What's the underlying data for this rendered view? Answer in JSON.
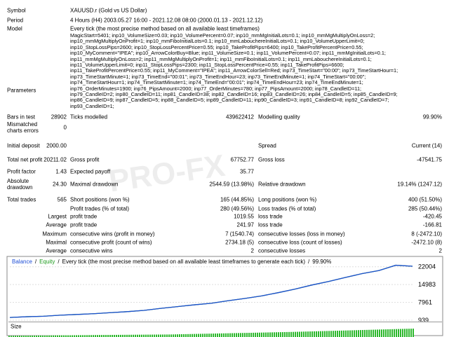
{
  "info": [
    {
      "label": "Symbol",
      "value": "XAUUSD.r (Gold vs US Dollar)"
    },
    {
      "label": "Period",
      "value": "4 Hours (H4) 2003.05.27 16:00 - 2021.12.08 08:00 (2000.01.13 - 2021.12.12)"
    },
    {
      "label": "Model",
      "value": "Every tick (the most precise method based on all available least timeframes)"
    }
  ],
  "parameters": {
    "label": "Parameters",
    "lines": [
      "MagicStart=5401; inp10_VolumeSize=0.03; inp10_VolumePercent=0.07; inp10_mmMgInitialLots=0.1; inp10_mmMgMultiplyOnLoss=2;",
      "inp10_mmMgMultiplyOnProfit=1; inp10_mmFiboInitialLots=0.1; inp10_mmLabouchereInitialLots=0.1; inp10_VolumeUpperLimit=0;",
      "inp10_StopLossPips=2600; inp10_StopLossPercentPrice=0.55; inp10_TakeProfitPips=6400; inp10_TakeProfitPercentPrice=0.55;",
      "inp10_MyComment=\"IPEA\"; inp10_ArrowColorBuy=Blue; inp11_VolumeSize=0.1; inp11_VolumePercent=0.07; inp11_mmMgInitialLots=0.1;",
      "inp11_mmMgMultiplyOnLoss=2; inp11_mmMgMultiplyOnProfit=1; inp11_mmFiboInitialLots=0.1; inp11_mmLabouchereInitialLots=0.1;",
      "inp11_VolumeUpperLimit=0; inp11_StopLossPips=2300; inp11_StopLossPercentPrice=0.55; inp11_TakeProfitPips=6600;",
      "inp11_TakeProfitPercentPrice=0.55; inp11_MyComment=\"IPEA\"; inp11_ArrowColorSell=Red; inp73_TimeStart=\"00:00\"; inp73_TimeStartHour=1;",
      "inp73_TimeStartMinute=1; inp73_TimeEnd=\"00:01\"; inp73_TimeEndHour=23; inp73_TimeEndMinute=1; inp74_TimeStart=\"00:00\";",
      "inp74_TimeStartHour=1; inp74_TimeStartMinute=1; inp74_TimeEnd=\"00:01\"; inp74_TimeEndHour=23; inp74_TimeEndMinute=1;",
      "inp76_OrderMinutes=1900; inp76_PipsAmount=2000; inp77_OrderMinutes=780; inp77_PipsAmount=2000; inp78_CandleID=11;",
      "inp79_CandleID=2; inp80_CandleID=11; inp81_CandleID=38; inp82_CandleID=16; inp83_CandleID=26; inp84_CandleID=5; inp85_CandleID=9;",
      "inp86_CandleID=9; inp87_CandleID=5; inp88_CandleID=5; inp89_CandleID=11; inp90_CandleID=3; inp91_CandleID=8; inp92_CandleID=7;",
      "inp93_CandleID=1;"
    ]
  },
  "stats": [
    {
      "label1": "Bars in test",
      "value1": "28902",
      "label2": "Ticks modelled",
      "value2": "439622412",
      "label3": "Modelling quality",
      "value3": "99.90%"
    },
    {
      "label1": "Mismatched charts errors",
      "value1": "0"
    },
    {
      "label1": "Initial deposit",
      "value1": "2000.00",
      "label3": "Spread",
      "value3": "Current (14)"
    },
    {
      "label1": "Total net profit",
      "value1": "20211.02",
      "label2": "Gross profit",
      "value2": "67752.77",
      "label3": "Gross loss",
      "value3": "-47541.75"
    },
    {
      "label1": "Profit factor",
      "value1": "1.43",
      "label2": "Expected payoff",
      "value2": "35.77"
    },
    {
      "label1": "Absolute drawdown",
      "value1": "24.30",
      "label2": "Maximal drawdown",
      "value2": "2544.59 (13.98%)",
      "label3": "Relative drawdown",
      "value3": "19.14% (1247.12)"
    },
    {
      "label1": "Total trades",
      "value1": "565",
      "label2": "Short positions (won %)",
      "value2": "165 (44.85%)",
      "label3": "Long positions (won %)",
      "value3": "400 (51.50%)"
    },
    {
      "label2": "Profit trades (% of total)",
      "value2": "280 (49.56%)",
      "label3": "Loss trades (% of total)",
      "value3": "285 (50.44%)"
    }
  ],
  "consecutive": [
    {
      "label1": "Largest",
      "label2": "profit trade",
      "value2": "1019.55",
      "label3": "loss trade",
      "value3": "-420.45"
    },
    {
      "label1": "Average",
      "label2": "profit trade",
      "value2": "241.97",
      "label3": "loss trade",
      "value3": "-166.81"
    },
    {
      "label1": "Maximum",
      "label2": "consecutive wins (profit in money)",
      "value2": "7 (1540.74)",
      "label3": "consecutive losses (loss in money)",
      "value3": "8 (-2472.10)"
    },
    {
      "label1": "Maximal",
      "label2": "consecutive profit (count of wins)",
      "value2": "2734.18 (5)",
      "label3": "consecutive loss (count of losses)",
      "value3": "-2472.10 (8)"
    },
    {
      "label1": "Average",
      "label2": "consecutive wins",
      "value2": "2",
      "label3": "consecutive losses",
      "value3": "2"
    }
  ],
  "watermark": "PRO-FX",
  "chart_data": {
    "type": "line",
    "separator": "/",
    "subtitle": "Every tick (the most precise method based on all available least timeframes to generate each tick)",
    "quality": "99.90%",
    "series": [
      {
        "name": "Balance",
        "color": "#1f4fd6",
        "values": [
          2000,
          2300,
          2500,
          2900,
          3200,
          3500,
          3900,
          4300,
          4800,
          5600,
          6300,
          7000,
          7600,
          8600,
          9500,
          10500,
          11800,
          13200,
          14800,
          16200,
          17800,
          19300,
          20500,
          22600,
          22211
        ]
      },
      {
        "name": "Equity",
        "color": "#1c9a1c",
        "values": [
          2000,
          2300,
          2500,
          2900,
          3200,
          3500,
          3900,
          4300,
          4800,
          5600,
          6300,
          7000,
          7600,
          8600,
          9500,
          10500,
          11800,
          13200,
          14800,
          16200,
          17800,
          19300,
          20500,
          22600,
          22211
        ]
      }
    ],
    "ylim": [
      939,
      25244
    ],
    "yticks": [
      939,
      7961,
      14983,
      22004
    ],
    "grid": true,
    "size_label": "Size"
  }
}
